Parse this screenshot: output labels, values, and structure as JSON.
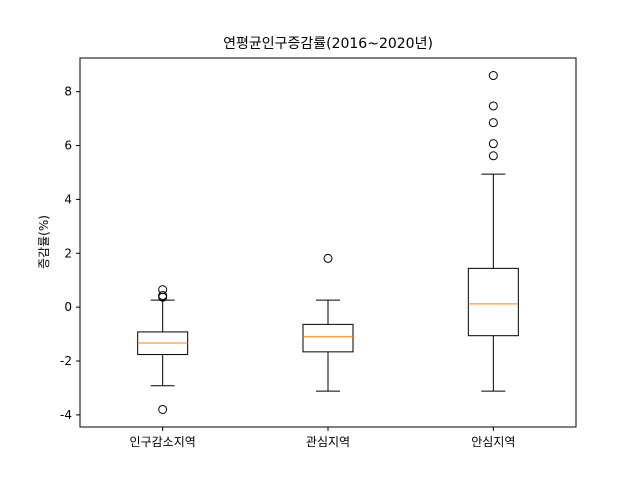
{
  "chart_data": {
    "type": "box",
    "title": "연평균인구증감률(2016~2020년)",
    "xlabel": "",
    "ylabel": "증감률(%)",
    "ylim": [
      -4.45,
      9.25
    ],
    "yticks": [
      -4,
      -2,
      0,
      2,
      4,
      6,
      8
    ],
    "ytick_labels": [
      "-4",
      "-2",
      "0",
      "2",
      "4",
      "6",
      "8"
    ],
    "grid": false,
    "colors": {
      "box": "#000000",
      "median": "#ff7f0e",
      "background": "#ffffff"
    },
    "categories": [
      "인구감소지역",
      "관심지역",
      "안심지역"
    ],
    "boxes": [
      {
        "name": "인구감소지역",
        "whisker_low": -2.92,
        "q1": -1.76,
        "median": -1.33,
        "q3": -0.92,
        "whisker_high": 0.26,
        "outliers": [
          -3.8,
          0.37,
          0.43,
          0.65
        ]
      },
      {
        "name": "관심지역",
        "whisker_low": -3.12,
        "q1": -1.66,
        "median": -1.1,
        "q3": -0.64,
        "whisker_high": 0.26,
        "outliers": [
          1.81
        ]
      },
      {
        "name": "안심지역",
        "whisker_low": -3.12,
        "q1": -1.06,
        "median": 0.12,
        "q3": 1.44,
        "whisker_high": 4.94,
        "outliers": [
          5.62,
          6.07,
          6.85,
          7.47,
          8.6
        ]
      }
    ]
  }
}
